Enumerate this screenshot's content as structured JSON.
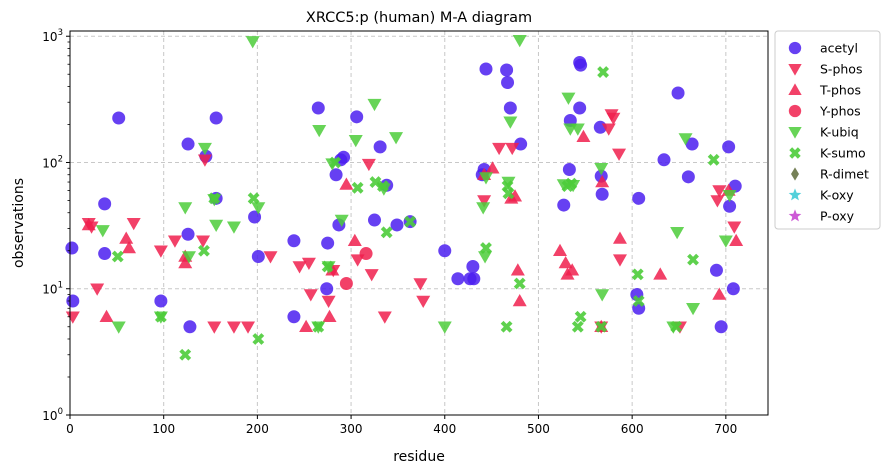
{
  "chart_data": {
    "type": "scatter",
    "title": "XRCC5:p (human) M-A diagram",
    "xlabel": "residue",
    "ylabel": "observations",
    "xlim": [
      0,
      745
    ],
    "ylim": [
      1,
      1100
    ],
    "yscale": "log",
    "grid": true,
    "legend_position": "outside-right",
    "x_ticks": [
      "0",
      "100",
      "200",
      "300",
      "400",
      "500",
      "600",
      "700"
    ],
    "y_ticks": [
      {
        "base": "10",
        "exp": "0"
      },
      {
        "base": "10",
        "exp": "1"
      },
      {
        "base": "10",
        "exp": "2"
      },
      {
        "base": "10",
        "exp": "3"
      }
    ],
    "series": [
      {
        "name": "acetyl",
        "marker": "circle",
        "color": "#4b1ff0",
        "points": [
          [
            2,
            21
          ],
          [
            3,
            8
          ],
          [
            37,
            47
          ],
          [
            37,
            19
          ],
          [
            52,
            225
          ],
          [
            97,
            8
          ],
          [
            126,
            140
          ],
          [
            126,
            27
          ],
          [
            128,
            5
          ],
          [
            145,
            112
          ],
          [
            156,
            225
          ],
          [
            156,
            52
          ],
          [
            197,
            37
          ],
          [
            201,
            18
          ],
          [
            239,
            6
          ],
          [
            239,
            24
          ],
          [
            265,
            270
          ],
          [
            274,
            10
          ],
          [
            275,
            23
          ],
          [
            284,
            80
          ],
          [
            287,
            32
          ],
          [
            289,
            105
          ],
          [
            292,
            110
          ],
          [
            306,
            230
          ],
          [
            325,
            35
          ],
          [
            331,
            133
          ],
          [
            338,
            66
          ],
          [
            349,
            32
          ],
          [
            363,
            34
          ],
          [
            400,
            20
          ],
          [
            414,
            12
          ],
          [
            427,
            12
          ],
          [
            430,
            15
          ],
          [
            431,
            12
          ],
          [
            440,
            80
          ],
          [
            442,
            88
          ],
          [
            444,
            550
          ],
          [
            466,
            540
          ],
          [
            467,
            430
          ],
          [
            470,
            270
          ],
          [
            481,
            140
          ],
          [
            527,
            46
          ],
          [
            533,
            88
          ],
          [
            534,
            215
          ],
          [
            544,
            270
          ],
          [
            544,
            620
          ],
          [
            545,
            590
          ],
          [
            566,
            190
          ],
          [
            567,
            78
          ],
          [
            568,
            56
          ],
          [
            605,
            9
          ],
          [
            607,
            7
          ],
          [
            607,
            52
          ],
          [
            634,
            105
          ],
          [
            649,
            355
          ],
          [
            660,
            77
          ],
          [
            664,
            140
          ],
          [
            690,
            14
          ],
          [
            695,
            5
          ],
          [
            703,
            133
          ],
          [
            704,
            45
          ],
          [
            708,
            10
          ],
          [
            710,
            65
          ]
        ]
      },
      {
        "name": "S-phos",
        "marker": "triangle-down",
        "color": "#f0204d",
        "points": [
          [
            3,
            6
          ],
          [
            20,
            33
          ],
          [
            23,
            31
          ],
          [
            29,
            10
          ],
          [
            68,
            33
          ],
          [
            97,
            20
          ],
          [
            112,
            24
          ],
          [
            142,
            24
          ],
          [
            144,
            105
          ],
          [
            154,
            5
          ],
          [
            175,
            5
          ],
          [
            190,
            5
          ],
          [
            214,
            18
          ],
          [
            245,
            15
          ],
          [
            255,
            16
          ],
          [
            257,
            9
          ],
          [
            276,
            8
          ],
          [
            281,
            14
          ],
          [
            307,
            17
          ],
          [
            319,
            97
          ],
          [
            322,
            13
          ],
          [
            336,
            6
          ],
          [
            374,
            11
          ],
          [
            377,
            8
          ],
          [
            442,
            50
          ],
          [
            458,
            130
          ],
          [
            472,
            130
          ],
          [
            567,
            5
          ],
          [
            575,
            185
          ],
          [
            578,
            240
          ],
          [
            580,
            225
          ],
          [
            586,
            117
          ],
          [
            587,
            17
          ],
          [
            651,
            5
          ],
          [
            691,
            50
          ],
          [
            693,
            60
          ],
          [
            709,
            31
          ]
        ]
      },
      {
        "name": "T-phos",
        "marker": "triangle-up",
        "color": "#f0204d",
        "points": [
          [
            20,
            32
          ],
          [
            39,
            6
          ],
          [
            60,
            25
          ],
          [
            63,
            21
          ],
          [
            123,
            18
          ],
          [
            123,
            16
          ],
          [
            252,
            5
          ],
          [
            277,
            6
          ],
          [
            280,
            14
          ],
          [
            295,
            67
          ],
          [
            304,
            24
          ],
          [
            442,
            80
          ],
          [
            451,
            90
          ],
          [
            471,
            52
          ],
          [
            475,
            54
          ],
          [
            478,
            14
          ],
          [
            480,
            8
          ],
          [
            523,
            20
          ],
          [
            529,
            16
          ],
          [
            531,
            13
          ],
          [
            536,
            14
          ],
          [
            548,
            160
          ],
          [
            567,
            5
          ],
          [
            568,
            70
          ],
          [
            587,
            25
          ],
          [
            630,
            13
          ],
          [
            693,
            9
          ],
          [
            703,
            60
          ],
          [
            711,
            24
          ]
        ]
      },
      {
        "name": "Y-phos",
        "marker": "circle",
        "color": "#f0204d",
        "points": [
          [
            295,
            11
          ],
          [
            316,
            19
          ]
        ]
      },
      {
        "name": "K-ubiq",
        "marker": "triangle-down",
        "color": "#4ccc3a",
        "points": [
          [
            35,
            29
          ],
          [
            52,
            5
          ],
          [
            97,
            6
          ],
          [
            123,
            44
          ],
          [
            127,
            18
          ],
          [
            144,
            130
          ],
          [
            154,
            51
          ],
          [
            156,
            32
          ],
          [
            175,
            31
          ],
          [
            195,
            910
          ],
          [
            201,
            44
          ],
          [
            265,
            5
          ],
          [
            266,
            180
          ],
          [
            276,
            15
          ],
          [
            280,
            98
          ],
          [
            290,
            35
          ],
          [
            305,
            150
          ],
          [
            325,
            290
          ],
          [
            335,
            62
          ],
          [
            348,
            158
          ],
          [
            400,
            5
          ],
          [
            441,
            44
          ],
          [
            443,
            18
          ],
          [
            444,
            76
          ],
          [
            468,
            70
          ],
          [
            470,
            210
          ],
          [
            480,
            930
          ],
          [
            527,
            67
          ],
          [
            532,
            325
          ],
          [
            534,
            185
          ],
          [
            537,
            66
          ],
          [
            542,
            185
          ],
          [
            567,
            90
          ],
          [
            568,
            9
          ],
          [
            644,
            5
          ],
          [
            648,
            28
          ],
          [
            657,
            155
          ],
          [
            665,
            7
          ],
          [
            700,
            24
          ],
          [
            704,
            55
          ]
        ]
      },
      {
        "name": "K-sumo",
        "marker": "x",
        "color": "#4ccc3a",
        "points": [
          [
            51,
            18
          ],
          [
            97,
            6
          ],
          [
            123,
            3
          ],
          [
            143,
            20
          ],
          [
            154,
            52
          ],
          [
            196,
            52
          ],
          [
            201,
            4
          ],
          [
            265,
            5
          ],
          [
            275,
            15
          ],
          [
            283,
            100
          ],
          [
            307,
            63
          ],
          [
            326,
            70
          ],
          [
            334,
            65
          ],
          [
            338,
            28
          ],
          [
            363,
            34
          ],
          [
            444,
            21
          ],
          [
            466,
            5
          ],
          [
            467,
            65
          ],
          [
            468,
            57
          ],
          [
            480,
            11
          ],
          [
            531,
            65
          ],
          [
            535,
            68
          ],
          [
            542,
            5
          ],
          [
            545,
            6
          ],
          [
            567,
            5
          ],
          [
            569,
            520
          ],
          [
            606,
            13
          ],
          [
            607,
            8
          ],
          [
            647,
            5
          ],
          [
            665,
            17
          ],
          [
            687,
            105
          ]
        ]
      },
      {
        "name": "R-dimet",
        "marker": "diamond",
        "color": "#5e6b3a",
        "points": []
      },
      {
        "name": "K-oxy",
        "marker": "star",
        "color": "#35c8d4",
        "points": []
      },
      {
        "name": "P-oxy",
        "marker": "star",
        "color": "#c43ccf",
        "points": []
      }
    ]
  }
}
